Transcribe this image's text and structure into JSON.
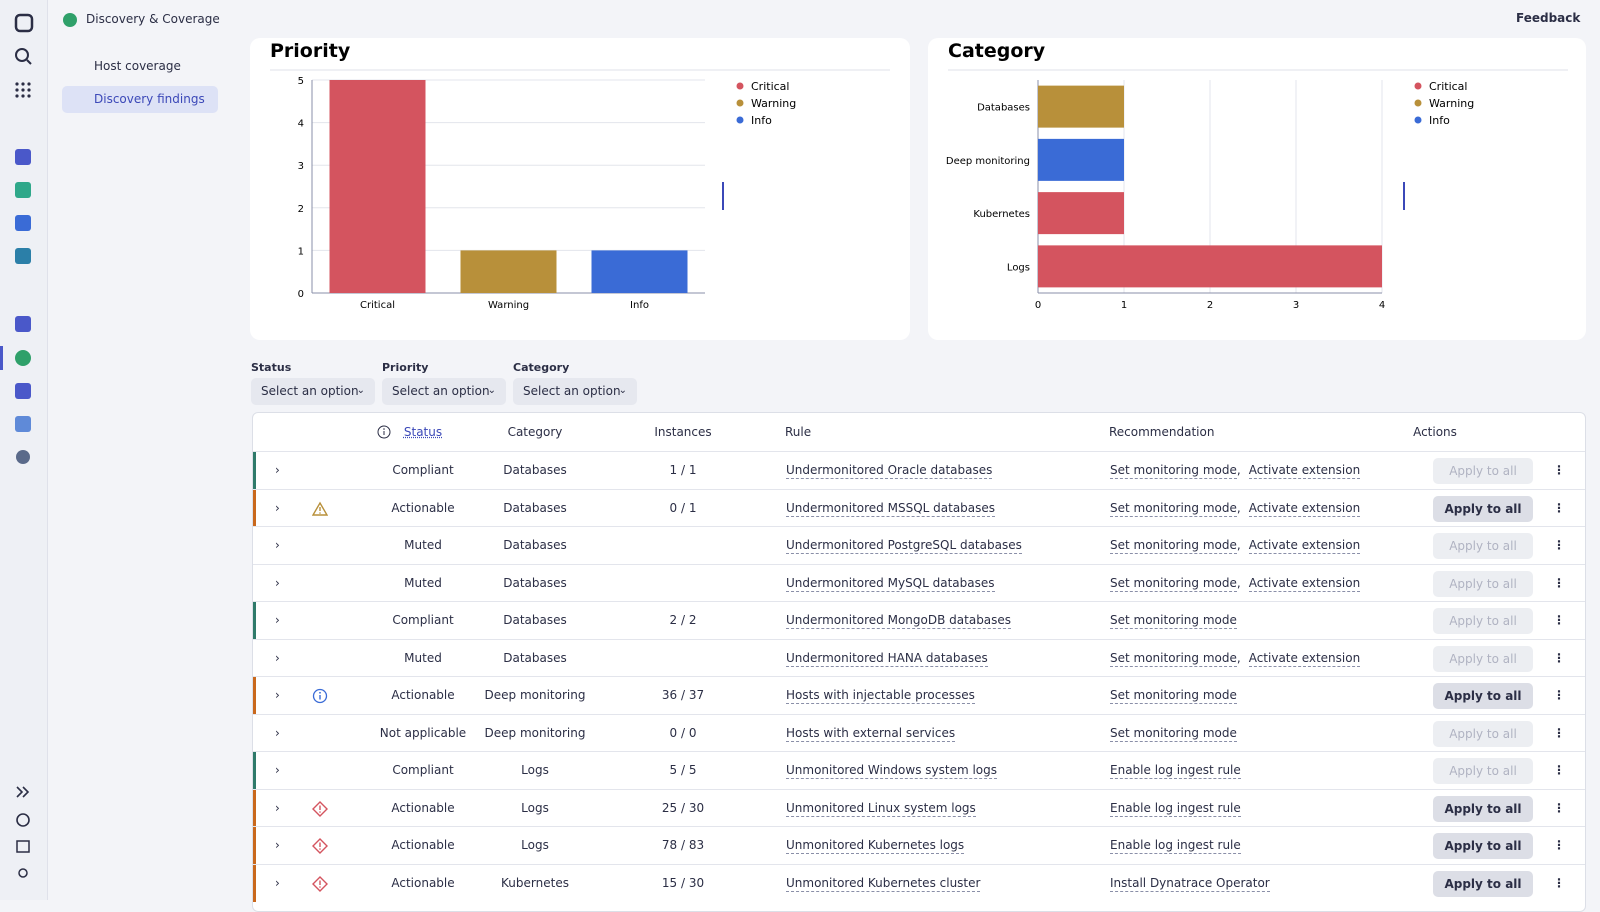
{
  "app": {
    "title": "Discovery & Coverage",
    "feedback": "Feedback"
  },
  "nav": [
    "Host coverage",
    "Discovery findings"
  ],
  "chart_data": [
    {
      "type": "bar",
      "title": "Priority",
      "categories": [
        "Critical",
        "Warning",
        "Info"
      ],
      "values": [
        5,
        1,
        1
      ],
      "colors": [
        "#d4545f",
        "#b8903a",
        "#3a6bd6"
      ],
      "ylim": [
        0,
        5
      ],
      "yticks": [
        0,
        1,
        2,
        3,
        4,
        5
      ],
      "grid": true,
      "legend": "right"
    },
    {
      "type": "bar",
      "orientation": "horizontal",
      "stacked": true,
      "title": "Category",
      "categories": [
        "Databases",
        "Deep monitoring",
        "Kubernetes",
        "Logs"
      ],
      "series": [
        {
          "name": "Critical",
          "color": "#d4545f",
          "values": [
            0,
            0,
            1,
            4
          ]
        },
        {
          "name": "Warning",
          "color": "#b8903a",
          "values": [
            1,
            0,
            0,
            0
          ]
        },
        {
          "name": "Info",
          "color": "#3a6bd6",
          "values": [
            0,
            1,
            0,
            0
          ]
        }
      ],
      "xlim": [
        0,
        4
      ],
      "xticks": [
        0,
        1,
        2,
        3,
        4
      ],
      "grid": true,
      "legend": "right"
    }
  ],
  "filters": [
    {
      "label": "Status",
      "placeholder": "Select an option"
    },
    {
      "label": "Priority",
      "placeholder": "Select an option"
    },
    {
      "label": "Category",
      "placeholder": "Select an option"
    }
  ],
  "table": {
    "columns": [
      "Status",
      "Category",
      "Instances",
      "Rule",
      "Recommendation",
      "Actions"
    ],
    "recommendation_separator": ",",
    "rows": [
      {
        "status": "Compliant",
        "category": "Databases",
        "instances": "1 / 1",
        "rule": "Undermonitored Oracle databases",
        "recommendations": [
          "Set monitoring mode",
          "Activate extension"
        ],
        "action": "Apply to all",
        "enabled": false,
        "accent": "#2f7a6a"
      },
      {
        "status": "Actionable",
        "category": "Databases",
        "instances": "0 / 1",
        "rule": "Undermonitored MSSQL databases",
        "recommendations": [
          "Set monitoring mode",
          "Activate extension"
        ],
        "action": "Apply to all",
        "enabled": true,
        "accent": "#c9681c",
        "severity": "Warning"
      },
      {
        "status": "Muted",
        "category": "Databases",
        "instances": null,
        "rule": "Undermonitored PostgreSQL databases",
        "recommendations": [
          "Set monitoring mode",
          "Activate extension"
        ],
        "action": "Apply to all",
        "enabled": false
      },
      {
        "status": "Muted",
        "category": "Databases",
        "instances": null,
        "rule": "Undermonitored MySQL databases",
        "recommendations": [
          "Set monitoring mode",
          "Activate extension"
        ],
        "action": "Apply to all",
        "enabled": false
      },
      {
        "status": "Compliant",
        "category": "Databases",
        "instances": "2 / 2",
        "rule": "Undermonitored MongoDB databases",
        "recommendations": [
          "Set monitoring mode"
        ],
        "action": "Apply to all",
        "enabled": false,
        "accent": "#2f7a6a"
      },
      {
        "status": "Muted",
        "category": "Databases",
        "instances": null,
        "rule": "Undermonitored HANA databases",
        "recommendations": [
          "Set monitoring mode",
          "Activate extension"
        ],
        "action": "Apply to all",
        "enabled": false
      },
      {
        "status": "Actionable",
        "category": "Deep monitoring",
        "instances": "36 / 37",
        "rule": "Hosts with injectable processes",
        "recommendations": [
          "Set monitoring mode"
        ],
        "action": "Apply to all",
        "enabled": true,
        "accent": "#c9681c",
        "severity": "Info"
      },
      {
        "status": "Not applicable",
        "category": "Deep monitoring",
        "instances": "0 / 0",
        "rule": "Hosts with external services",
        "recommendations": [
          "Set monitoring mode"
        ],
        "action": "Apply to all",
        "enabled": false
      },
      {
        "status": "Compliant",
        "category": "Logs",
        "instances": "5 / 5",
        "rule": "Unmonitored Windows system logs",
        "recommendations": [
          "Enable log ingest rule"
        ],
        "action": "Apply to all",
        "enabled": false,
        "accent": "#2f7a6a"
      },
      {
        "status": "Actionable",
        "category": "Logs",
        "instances": "25 / 30",
        "rule": "Unmonitored Linux system logs",
        "recommendations": [
          "Enable log ingest rule"
        ],
        "action": "Apply to all",
        "enabled": true,
        "accent": "#c9681c",
        "severity": "Critical"
      },
      {
        "status": "Actionable",
        "category": "Logs",
        "instances": "78 / 83",
        "rule": "Unmonitored Kubernetes logs",
        "recommendations": [
          "Enable log ingest rule"
        ],
        "action": "Apply to all",
        "enabled": true,
        "accent": "#c9681c",
        "severity": "Critical"
      },
      {
        "status": "Actionable",
        "category": "Kubernetes",
        "instances": "15 / 30",
        "rule": "Unmonitored Kubernetes cluster",
        "recommendations": [
          "Install Dynatrace Operator"
        ],
        "action": "Apply to all",
        "enabled": true,
        "accent": "#c9681c",
        "severity": "Critical"
      }
    ]
  }
}
